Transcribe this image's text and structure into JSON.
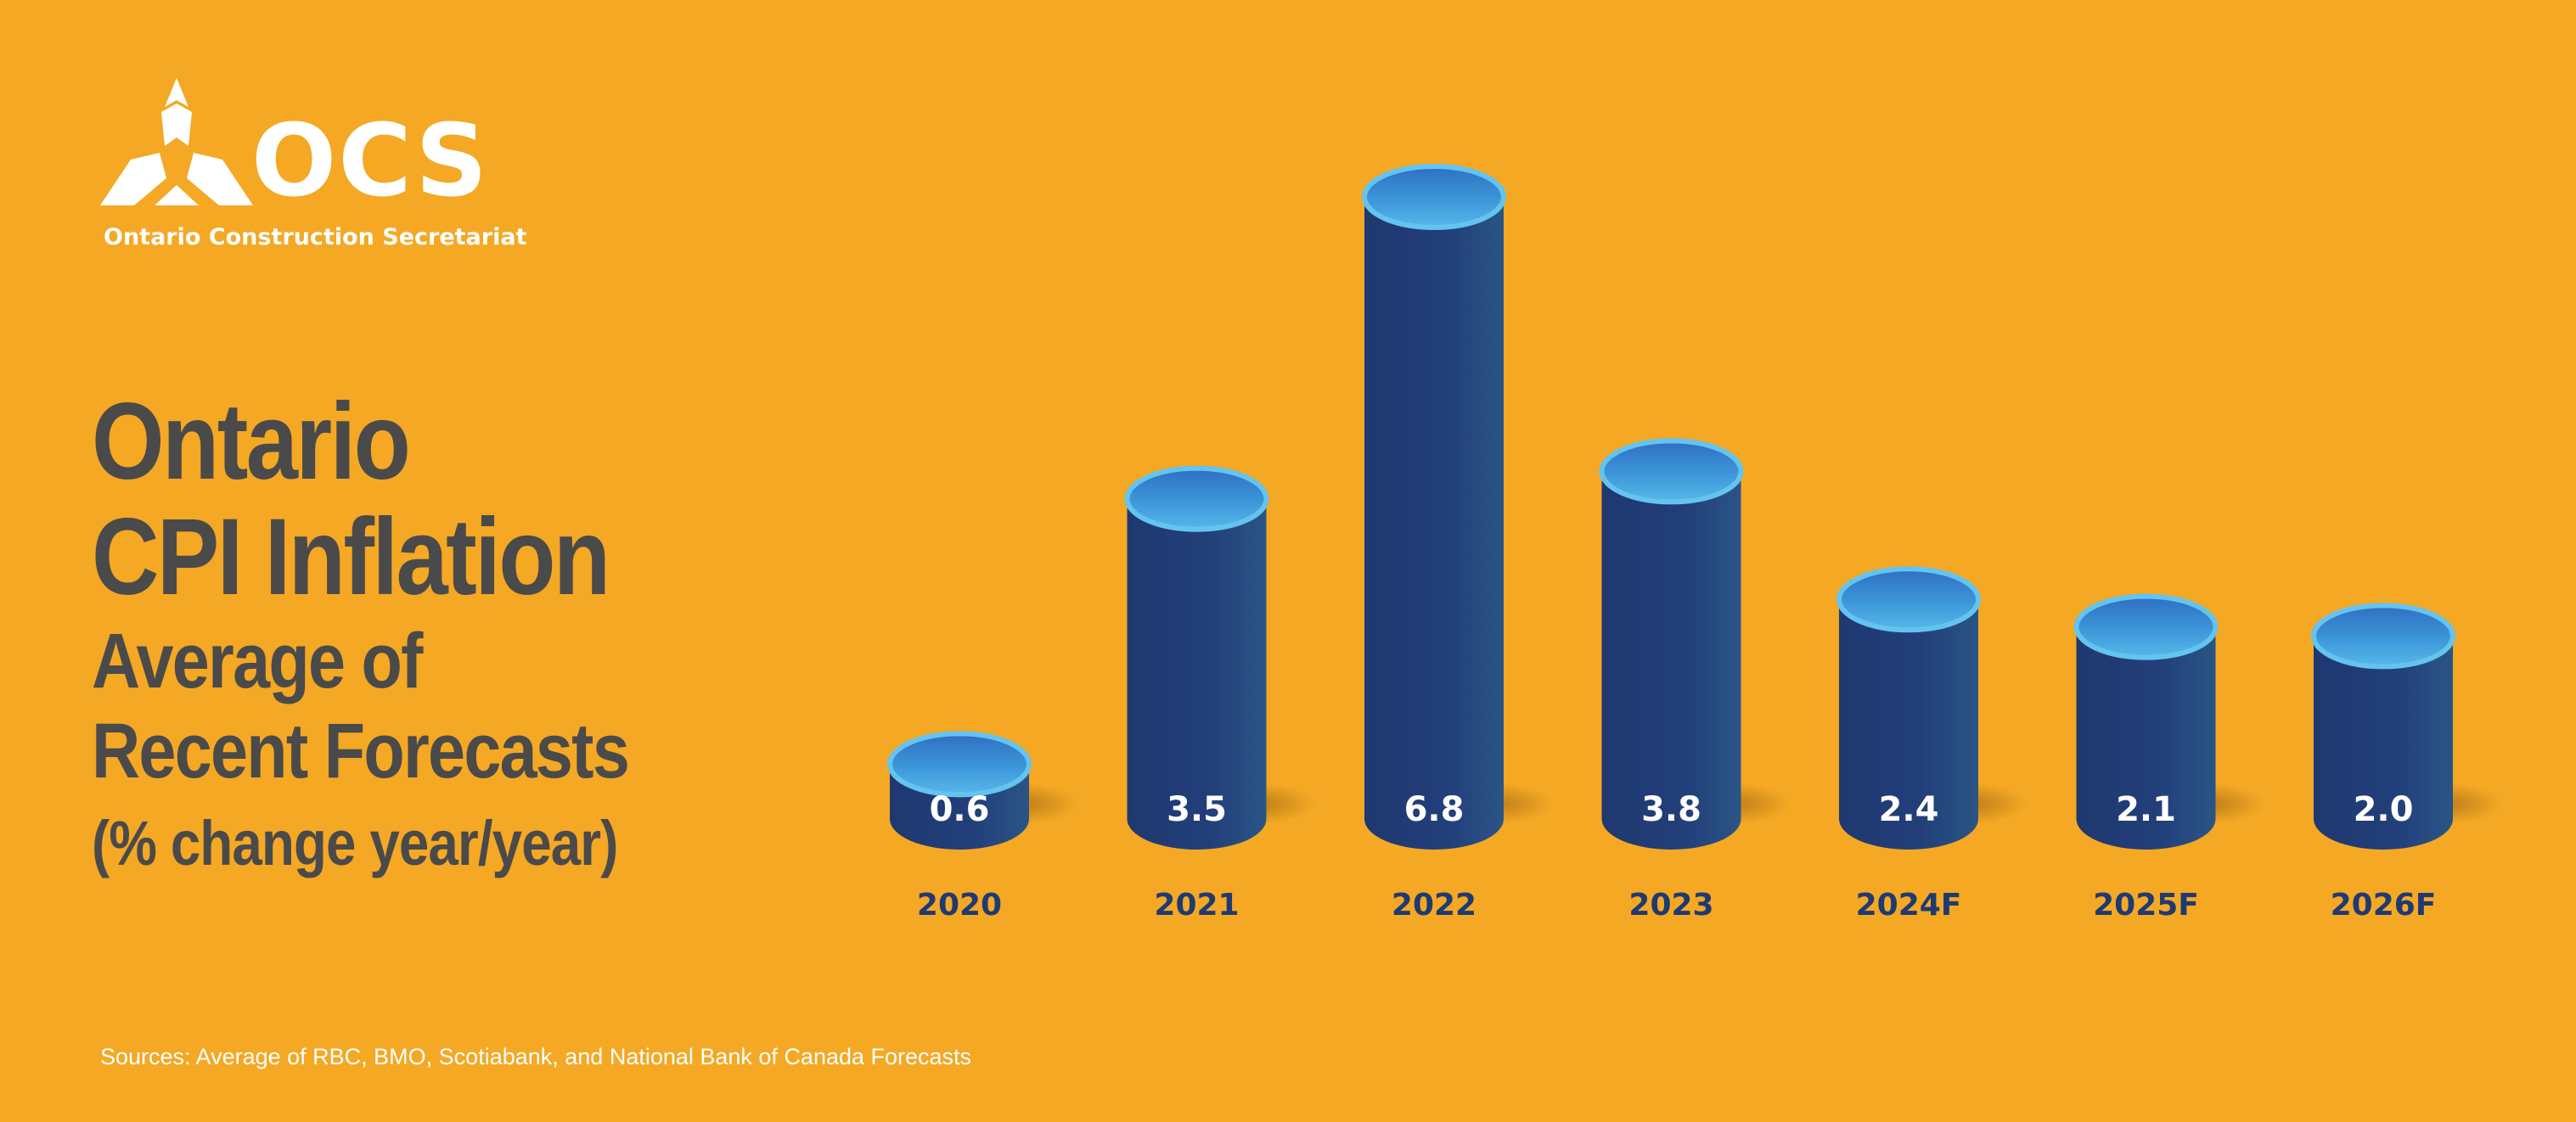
{
  "logo": {
    "wordmark": "OCS",
    "subtitle": "Ontario Construction Secretariat"
  },
  "title": {
    "line1": "Ontario",
    "line2": "CPI Inflation",
    "line3": "Average of",
    "line4": "Recent Forecasts",
    "line5": "(% change year/year)"
  },
  "source": "Sources: Average of RBC, BMO, Scotiabank, and National Bank of Canada Forecasts",
  "colors": {
    "background": "#F4A824",
    "bar": "#26427A",
    "bar_top": "#4FB4E6",
    "title": "#4a4a4a",
    "axis_label": "#1F3A72"
  },
  "chart_data": {
    "type": "bar",
    "style": "3d-cylinder",
    "categories": [
      "2020",
      "2021",
      "2022",
      "2023",
      "2024F",
      "2025F",
      "2026F"
    ],
    "values": [
      0.6,
      3.5,
      6.8,
      3.8,
      2.4,
      2.1,
      2.0
    ],
    "value_labels": [
      "0.6",
      "3.5",
      "6.8",
      "3.8",
      "2.4",
      "2.1",
      "2.0"
    ],
    "grid": false,
    "legend": "none"
  }
}
